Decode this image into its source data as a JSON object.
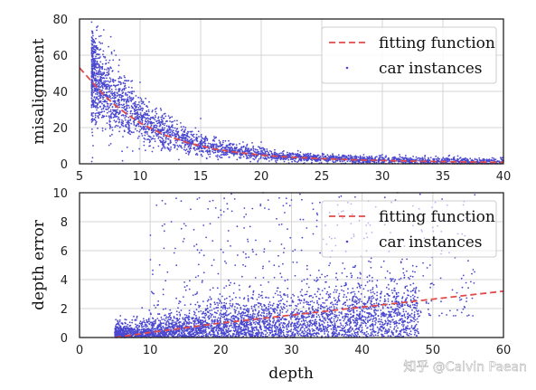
{
  "watermark": "知乎 @Calvin Paean",
  "colors": {
    "scatter": "#4a48cf",
    "fit": "#e24a4a",
    "grid": "#d4d4d4",
    "axes": "#222222"
  },
  "chart_data": [
    {
      "type": "scatter",
      "title": "",
      "xlabel": "",
      "ylabel": "misalignment",
      "xlim": [
        5,
        40
      ],
      "ylim": [
        0,
        80
      ],
      "xticks": [
        "5",
        "10",
        "15",
        "20",
        "25",
        "30",
        "35",
        "40"
      ],
      "yticks": [
        "0",
        "20",
        "40",
        "60",
        "80"
      ],
      "grid": true,
      "legend_position": "top-right",
      "legend": [
        "fitting function",
        "car instances"
      ],
      "series": [
        {
          "name": "fitting function",
          "kind": "line",
          "style": "dashed",
          "x": [
            5,
            6,
            7,
            8,
            9,
            10,
            12,
            14,
            16,
            18,
            20,
            22,
            25,
            28,
            30,
            33,
            36,
            40
          ],
          "y": [
            53,
            45.5,
            38,
            32,
            27,
            22.5,
            16,
            11.5,
            8.3,
            6.3,
            4.8,
            3.8,
            2.8,
            2.1,
            1.8,
            1.4,
            1.1,
            0.8
          ]
        },
        {
          "name": "car instances",
          "kind": "scatter",
          "x_range": [
            6,
            40
          ],
          "y_range": [
            0,
            76
          ],
          "density": "dense near depth 6-20, sparse beyond 30",
          "note_points": [
            [
              6.5,
              76
            ],
            [
              7,
              74
            ],
            [
              6.2,
              68
            ],
            [
              8,
              60
            ],
            [
              10,
              45
            ],
            [
              15,
              25
            ],
            [
              20,
              12
            ],
            [
              30,
              5
            ],
            [
              40,
              2
            ]
          ]
        }
      ]
    },
    {
      "type": "scatter",
      "title": "",
      "xlabel": "depth",
      "ylabel": "depth error",
      "xlim": [
        0,
        60
      ],
      "ylim": [
        0,
        10
      ],
      "xticks": [
        "0",
        "10",
        "20",
        "30",
        "40",
        "50",
        "60"
      ],
      "yticks": [
        "0",
        "2",
        "4",
        "6",
        "8",
        "10"
      ],
      "grid": true,
      "legend_position": "top-right",
      "legend": [
        "fitting function",
        "car instances"
      ],
      "series": [
        {
          "name": "fitting function",
          "kind": "line",
          "style": "dashed",
          "x": [
            5,
            10,
            20,
            30,
            40,
            50,
            60
          ],
          "y": [
            0.0,
            0.35,
            1.0,
            1.55,
            2.1,
            2.65,
            3.2
          ]
        },
        {
          "name": "car instances",
          "kind": "scatter",
          "x_range": [
            5,
            56
          ],
          "y_range": [
            0,
            10
          ],
          "density": "dense below 2 between depth 10-45, scattered outliers up to 10",
          "note_points": [
            [
              13,
              8
            ],
            [
              20,
              8.8
            ],
            [
              26,
              10
            ],
            [
              30,
              9.5
            ],
            [
              39,
              9.7
            ],
            [
              45,
              10
            ],
            [
              50,
              7.6
            ],
            [
              55,
              5.3
            ]
          ]
        }
      ]
    }
  ]
}
